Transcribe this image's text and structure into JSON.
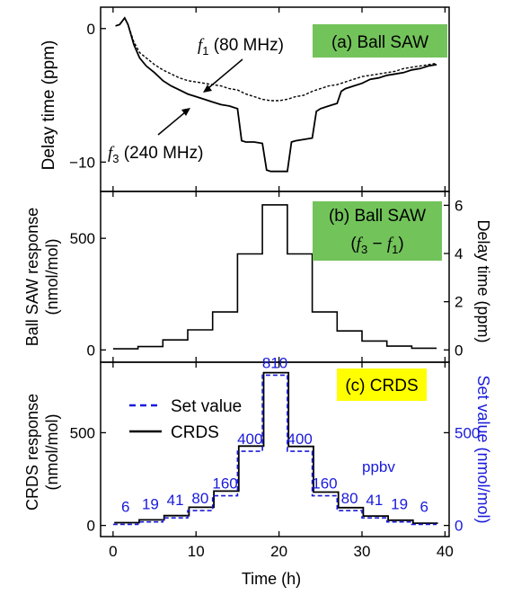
{
  "chart_data": [
    {
      "type": "line",
      "panel_label": "(a) Ball SAW",
      "ylabel": "Delay time (ppm)",
      "xlim": [
        -1.5,
        40.5
      ],
      "ylim": [
        -12.2,
        1.6
      ],
      "yticks": [
        "0",
        "−10"
      ],
      "ytick_values": [
        0,
        -10
      ],
      "annotations": [
        {
          "sym": "f",
          "sub": "1",
          "text": " (80 MHz)"
        },
        {
          "sym": "f",
          "sub": "3",
          "text": " (240 MHz)"
        }
      ],
      "series": [
        {
          "style": "dashed",
          "x": [
            0.3,
            0.8,
            1.4,
            1.8,
            2.5,
            3.2,
            4,
            5,
            6,
            7,
            8,
            9,
            10,
            11,
            12,
            13,
            14,
            15,
            16,
            17,
            18,
            19,
            20,
            21,
            22,
            23,
            24,
            25,
            26,
            27,
            28,
            29,
            30,
            31,
            32,
            33,
            34,
            35,
            36,
            37,
            38,
            39
          ],
          "y": [
            0.2,
            0.3,
            0.8,
            0.3,
            -1.0,
            -1.8,
            -2.2,
            -2.7,
            -3.1,
            -3.4,
            -3.7,
            -3.9,
            -4.0,
            -4.1,
            -4.2,
            -4.3,
            -4.5,
            -4.6,
            -4.9,
            -5.1,
            -5.3,
            -5.4,
            -5.4,
            -5.3,
            -5.1,
            -5.0,
            -4.7,
            -4.5,
            -4.3,
            -4.2,
            -4.0,
            -3.8,
            -3.6,
            -3.5,
            -3.4,
            -3.3,
            -3.2,
            -3.0,
            -2.9,
            -2.8,
            -2.7,
            -2.6
          ]
        },
        {
          "style": "solid",
          "x": [
            0.3,
            0.8,
            1.4,
            1.8,
            2.5,
            3.2,
            4,
            5,
            6,
            7,
            8,
            9,
            10,
            11,
            12,
            13,
            14,
            15,
            15.5,
            16,
            17,
            18,
            18.5,
            19,
            20,
            21,
            21.5,
            22,
            23,
            24,
            24.5,
            25,
            26,
            27,
            27.5,
            28,
            29,
            30,
            31,
            32,
            33,
            34,
            35,
            36,
            37,
            38,
            39
          ],
          "y": [
            0.2,
            0.3,
            0.8,
            0.3,
            -1.2,
            -2.2,
            -2.8,
            -3.3,
            -3.9,
            -4.3,
            -4.6,
            -4.9,
            -5.1,
            -5.3,
            -5.5,
            -5.7,
            -5.8,
            -6.0,
            -8.4,
            -8.5,
            -8.5,
            -8.6,
            -10.6,
            -10.7,
            -10.7,
            -10.7,
            -8.5,
            -8.4,
            -8.3,
            -8.2,
            -6.2,
            -6.0,
            -5.8,
            -5.6,
            -4.7,
            -4.5,
            -4.3,
            -4.1,
            -3.8,
            -3.7,
            -3.5,
            -3.4,
            -3.3,
            -3.1,
            -3.0,
            -2.8,
            -2.7
          ]
        }
      ]
    },
    {
      "type": "line",
      "panel_label_line1": "(b) Ball SAW",
      "panel_label_line2_left": "(",
      "panel_label_line2_right": ")",
      "panel_label_expr": {
        "a": "f",
        "a_sub": "3",
        "op": " − ",
        "b": "f",
        "b_sub": "1"
      },
      "ylabel_line1": "Ball SAW response",
      "ylabel_line2": "(nmol/mol)",
      "ylabel_right": "Delay time (ppm)",
      "xlim": [
        -1.5,
        40.5
      ],
      "ylim": [
        -55,
        710
      ],
      "yticks": [
        "0",
        "500"
      ],
      "ytick_values": [
        0,
        500
      ],
      "yticks_right": [
        "0",
        "2",
        "4",
        "6"
      ],
      "yticks_right_values": [
        0,
        2,
        4,
        6
      ],
      "right_scale_nmol_per_ppm": 108,
      "series": [
        {
          "style": "solid",
          "steps": [
            [
              0,
              3,
              5
            ],
            [
              3,
              6,
              15
            ],
            [
              6,
              9,
              45
            ],
            [
              9,
              12,
              90
            ],
            [
              12,
              15,
              170
            ],
            [
              15,
              18,
              430
            ],
            [
              18,
              21,
              650
            ],
            [
              21,
              24,
              430
            ],
            [
              24,
              27,
              170
            ],
            [
              27,
              30,
              85
            ],
            [
              30,
              33,
              40
            ],
            [
              33,
              36,
              17
            ],
            [
              36,
              39,
              8
            ]
          ]
        }
      ]
    },
    {
      "type": "line",
      "panel_label": "(c) CRDS",
      "ylabel_line1": "CRDS response",
      "ylabel_line2": "(nmol/mol)",
      "ylabel_right": "Set value (nmol/mol)",
      "xlabel": "Time (h)",
      "xlim": [
        -1.5,
        40.5
      ],
      "ylim": [
        -60,
        880
      ],
      "xticks": [
        "0",
        "10",
        "20",
        "30",
        "40"
      ],
      "xtick_values": [
        0,
        10,
        20,
        30,
        40
      ],
      "yticks": [
        "0",
        "500"
      ],
      "ytick_values": [
        0,
        500
      ],
      "yticks_right": [
        "0",
        "500"
      ],
      "yticks_right_values": [
        0,
        500
      ],
      "legend": [
        "Set value",
        "CRDS"
      ],
      "unit_note": "ppbv",
      "step_labels": [
        "6",
        "19",
        "41",
        "80",
        "160",
        "400",
        "810",
        "400",
        "160",
        "80",
        "41",
        "19",
        "6"
      ],
      "steps": [
        [
          0,
          3,
          6
        ],
        [
          3,
          6,
          19
        ],
        [
          6,
          9,
          41
        ],
        [
          9,
          12,
          80
        ],
        [
          12,
          15,
          160
        ],
        [
          15,
          18,
          400
        ],
        [
          18,
          21,
          810
        ],
        [
          21,
          24,
          400
        ],
        [
          24,
          27,
          160
        ],
        [
          27,
          30,
          80
        ],
        [
          30,
          33,
          41
        ],
        [
          33,
          36,
          19
        ],
        [
          36,
          39,
          6
        ]
      ],
      "series": [
        {
          "name": "Set value",
          "style": "dashed",
          "color": "#1a1adc"
        },
        {
          "name": "CRDS",
          "style": "solid",
          "color": "#000000",
          "offsets": [
            9,
            11,
            12,
            18,
            25,
            28,
            14,
            26,
            20,
            16,
            10,
            9,
            6
          ]
        }
      ]
    }
  ],
  "colors": {
    "accent_green": "#72c35a",
    "accent_yellow": "#ffff00",
    "blue": "#1a1adc"
  }
}
